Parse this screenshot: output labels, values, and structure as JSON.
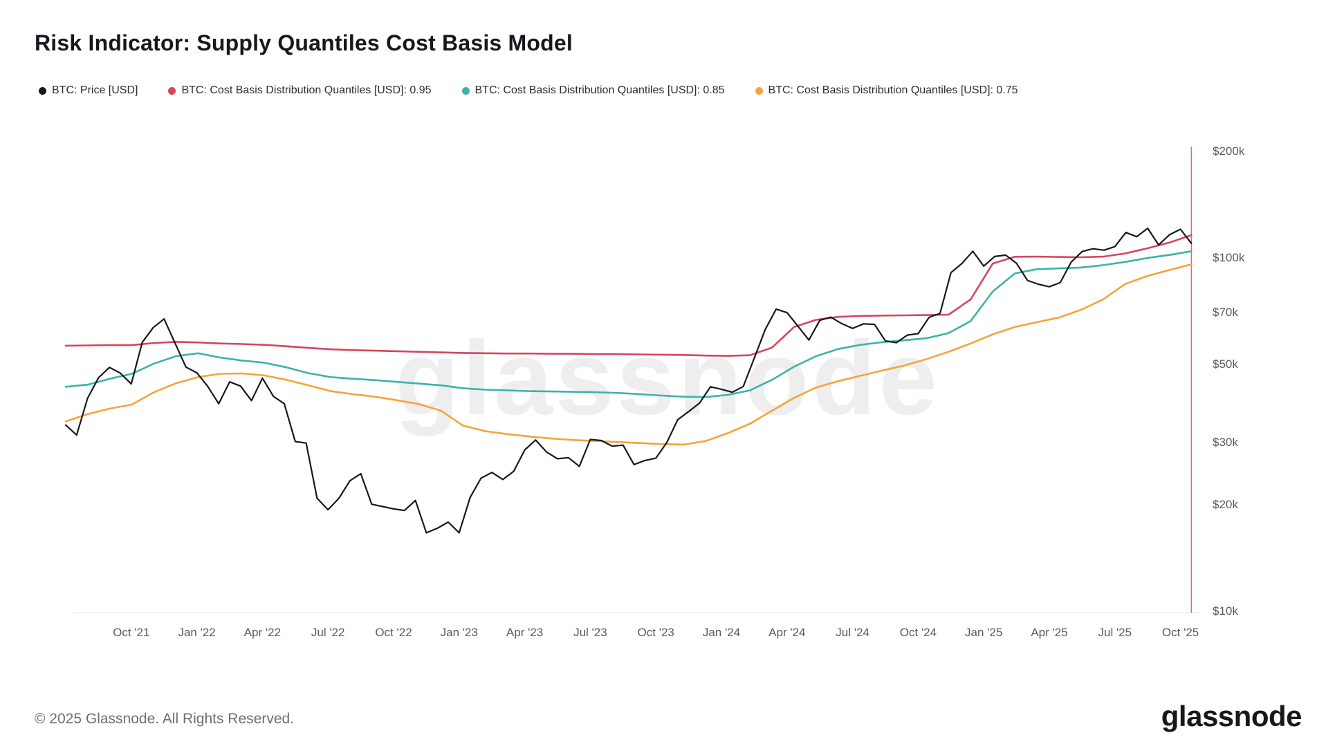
{
  "header": {
    "title": "Risk Indicator: Supply Quantiles Cost Basis Model"
  },
  "legend": {
    "items": [
      {
        "key": "price",
        "label": "BTC: Price [USD]",
        "color": "#17181c"
      },
      {
        "key": "q095",
        "label": "BTC: Cost Basis Distribution Quantiles [USD]: 0.95",
        "color": "#d6455d"
      },
      {
        "key": "q085",
        "label": "BTC: Cost Basis Distribution Quantiles [USD]: 0.85",
        "color": "#3cb3a6"
      },
      {
        "key": "q075",
        "label": "BTC: Cost Basis Distribution Quantiles [USD]: 0.75",
        "color": "#f6a33a"
      }
    ]
  },
  "watermark": "glassnode",
  "footer": {
    "copyright": "© 2025 Glassnode. All Rights Reserved.",
    "brand": "glassnode"
  },
  "chart_data": {
    "type": "line",
    "title": "Risk Indicator: Supply Quantiles Cost Basis Model",
    "x_axis": {
      "unit": "months since 2021-07-01",
      "ticks": [
        {
          "t": 3,
          "label": "Oct '21"
        },
        {
          "t": 6,
          "label": "Jan '22"
        },
        {
          "t": 9,
          "label": "Apr '22"
        },
        {
          "t": 12,
          "label": "Jul '22"
        },
        {
          "t": 15,
          "label": "Oct '22"
        },
        {
          "t": 18,
          "label": "Jan '23"
        },
        {
          "t": 21,
          "label": "Apr '23"
        },
        {
          "t": 24,
          "label": "Jul '23"
        },
        {
          "t": 27,
          "label": "Oct '23"
        },
        {
          "t": 30,
          "label": "Jan '24"
        },
        {
          "t": 33,
          "label": "Apr '24"
        },
        {
          "t": 36,
          "label": "Jul '24"
        },
        {
          "t": 39,
          "label": "Oct '24"
        },
        {
          "t": 42,
          "label": "Jan '25"
        },
        {
          "t": 45,
          "label": "Apr '25"
        },
        {
          "t": 48,
          "label": "Jul '25"
        },
        {
          "t": 51,
          "label": "Oct '25"
        }
      ]
    },
    "y_axis": {
      "scale": "log",
      "range_k_usd": [
        10,
        200
      ],
      "ticks": [
        {
          "value_k": 200,
          "label": "$200k"
        },
        {
          "value_k": 100,
          "label": "$100k"
        },
        {
          "value_k": 70,
          "label": "$70k"
        },
        {
          "value_k": 50,
          "label": "$50k"
        },
        {
          "value_k": 30,
          "label": "$30k"
        },
        {
          "value_k": 20,
          "label": "$20k"
        },
        {
          "value_k": 10,
          "label": "$10k"
        }
      ]
    },
    "marker_line": {
      "t": 51.5,
      "color": "#f0435a"
    },
    "grid": false,
    "legend_position": "top",
    "series": [
      {
        "id": "price-line",
        "name": "BTC: Price [USD]",
        "color": "#17181c",
        "width": 2.2,
        "tmax": 51.5,
        "values_k_usd": [
          33.5,
          31.4,
          39.9,
          45.6,
          48.8,
          47.0,
          43.8,
          57.4,
          63.2,
          66.9,
          57.2,
          48.9,
          47.1,
          43.1,
          38.5,
          44.4,
          43.2,
          39.3,
          45.5,
          40.4,
          38.5,
          30.1,
          29.8,
          20.8,
          19.3,
          20.8,
          23.3,
          24.4,
          20.0,
          19.7,
          19.4,
          19.2,
          20.5,
          16.6,
          17.1,
          17.8,
          16.6,
          20.9,
          23.7,
          24.6,
          23.5,
          24.8,
          28.5,
          30.4,
          28.1,
          26.9,
          27.1,
          25.6,
          30.5,
          30.3,
          29.2,
          29.4,
          25.9,
          26.6,
          27.0,
          29.9,
          34.7,
          36.6,
          38.7,
          43.0,
          42.3,
          41.5,
          43.1,
          51.8,
          62.4,
          71.3,
          69.7,
          63.8,
          58.3,
          66.3,
          67.7,
          64.9,
          62.9,
          64.8,
          64.6,
          58.0,
          57.3,
          60.2,
          60.8,
          67.6,
          69.4,
          90.5,
          96.0,
          104.0,
          94.4,
          100.5,
          101.4,
          96.1,
          86.0,
          83.9,
          82.5,
          84.8,
          96.9,
          103.8,
          105.7,
          104.7,
          107.2,
          117.5,
          114.3,
          120.8,
          108.4,
          115.8,
          120.0,
          109.5
        ]
      },
      {
        "id": "quantile-095-line",
        "name": "BTC: Cost Basis Distribution Quantiles [USD]: 0.95",
        "color": "#d6455d",
        "width": 2.6,
        "tmax": 51.5,
        "values_k_usd": [
          56.2,
          56.3,
          56.4,
          56.4,
          57.2,
          57.6,
          57.4,
          57.0,
          56.8,
          56.5,
          56.0,
          55.4,
          54.9,
          54.6,
          54.4,
          54.2,
          54.0,
          53.8,
          53.6,
          53.5,
          53.4,
          53.4,
          53.3,
          53.3,
          53.2,
          53.2,
          53.1,
          53.0,
          52.9,
          52.7,
          52.6,
          52.8,
          55.5,
          63.5,
          66.5,
          67.8,
          68.2,
          68.4,
          68.5,
          68.6,
          68.8,
          76.0,
          96.0,
          100.3,
          100.4,
          100.2,
          100.0,
          100.4,
          102.5,
          106.0,
          110.0,
          115.5
        ]
      },
      {
        "id": "quantile-085-line",
        "name": "BTC: Cost Basis Distribution Quantiles [USD]: 0.85",
        "color": "#3cb3a6",
        "width": 2.6,
        "tmax": 51.5,
        "values_k_usd": [
          43.0,
          43.6,
          45.3,
          46.8,
          50.0,
          52.5,
          53.5,
          52.0,
          51.0,
          50.3,
          48.8,
          47.0,
          45.8,
          45.3,
          44.9,
          44.4,
          43.9,
          43.4,
          42.6,
          42.2,
          42.0,
          41.8,
          41.7,
          41.6,
          41.5,
          41.3,
          41.0,
          40.6,
          40.3,
          40.2,
          40.8,
          42.0,
          45.0,
          49.0,
          52.5,
          55.0,
          56.5,
          57.5,
          58.2,
          59.0,
          61.0,
          66.0,
          80.0,
          90.0,
          92.5,
          93.0,
          93.5,
          95.0,
          97.0,
          99.5,
          101.5,
          104.0
        ]
      },
      {
        "id": "quantile-075-line",
        "name": "BTC: Cost Basis Distribution Quantiles [USD]: 0.75",
        "color": "#f6a33a",
        "width": 2.6,
        "tmax": 51.5,
        "values_k_usd": [
          34.3,
          36.0,
          37.3,
          38.3,
          41.5,
          44.0,
          45.8,
          46.8,
          46.9,
          46.3,
          45.0,
          43.4,
          41.8,
          41.0,
          40.3,
          39.4,
          38.4,
          36.8,
          33.4,
          32.2,
          31.6,
          31.1,
          30.7,
          30.4,
          30.2,
          30.0,
          29.8,
          29.6,
          29.5,
          30.2,
          31.8,
          33.8,
          36.8,
          40.0,
          42.8,
          44.6,
          46.2,
          47.8,
          49.4,
          51.5,
          54.0,
          57.0,
          60.5,
          63.5,
          65.5,
          67.5,
          71.0,
          76.0,
          84.0,
          88.5,
          92.0,
          95.5
        ]
      }
    ]
  }
}
